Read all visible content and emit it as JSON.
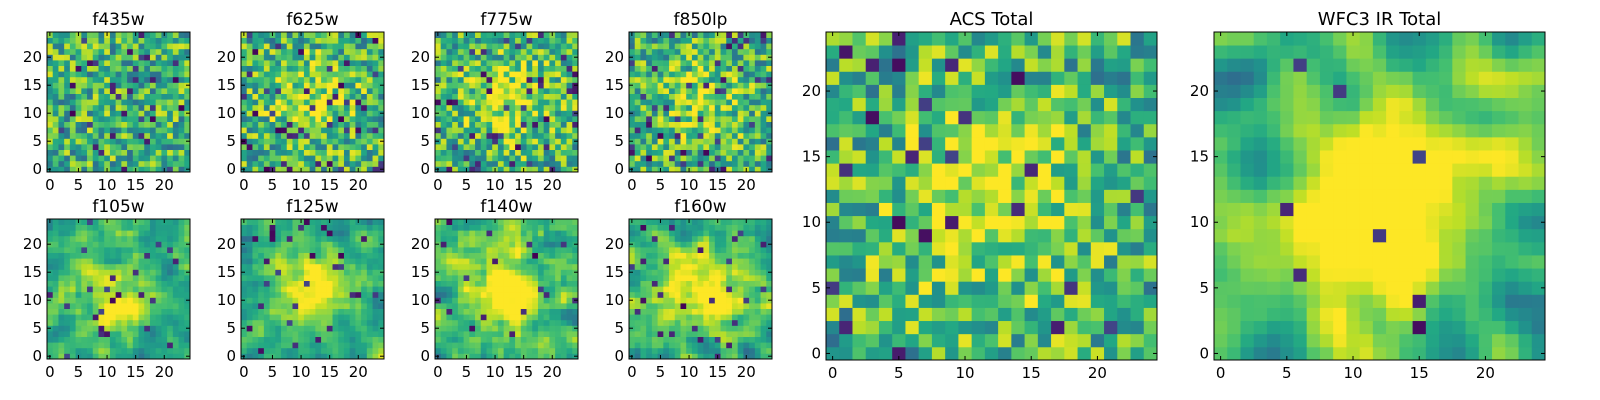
{
  "chart_data": [
    {
      "type": "heatmap",
      "title": "f435w",
      "colormap": "viridis",
      "grid": "25x25",
      "xlim": [
        0,
        24
      ],
      "ylim": [
        0,
        24
      ],
      "xticks": [
        0,
        5,
        10,
        15,
        20
      ],
      "yticks": [
        0,
        5,
        10,
        15,
        20
      ],
      "legend": "none",
      "image_pattern": {
        "seed": 11,
        "smooth": 0,
        "center_peak": 0.0,
        "dark_fraction": 0.05
      }
    },
    {
      "type": "heatmap",
      "title": "f625w",
      "colormap": "viridis",
      "grid": "25x25",
      "xlim": [
        0,
        24
      ],
      "ylim": [
        0,
        24
      ],
      "xticks": [
        0,
        5,
        10,
        15,
        20
      ],
      "yticks": [
        0,
        5,
        10,
        15,
        20
      ],
      "legend": "none",
      "image_pattern": {
        "seed": 22,
        "smooth": 0,
        "center_peak": 0.25,
        "dark_fraction": 0.07
      }
    },
    {
      "type": "heatmap",
      "title": "f775w",
      "colormap": "viridis",
      "grid": "25x25",
      "xlim": [
        0,
        24
      ],
      "ylim": [
        0,
        24
      ],
      "xticks": [
        0,
        5,
        10,
        15,
        20
      ],
      "yticks": [
        0,
        5,
        10,
        15,
        20
      ],
      "legend": "none",
      "image_pattern": {
        "seed": 33,
        "smooth": 0,
        "center_peak": 0.3,
        "dark_fraction": 0.06
      }
    },
    {
      "type": "heatmap",
      "title": "f850lp",
      "colormap": "viridis",
      "grid": "25x25",
      "xlim": [
        0,
        24
      ],
      "ylim": [
        0,
        24
      ],
      "xticks": [
        0,
        5,
        10,
        15,
        20
      ],
      "yticks": [
        0,
        5,
        10,
        15,
        20
      ],
      "legend": "none",
      "image_pattern": {
        "seed": 44,
        "smooth": 0,
        "center_peak": 0.2,
        "dark_fraction": 0.07
      }
    },
    {
      "type": "heatmap",
      "title": "f105w",
      "colormap": "viridis",
      "grid": "25x25",
      "xlim": [
        0,
        24
      ],
      "ylim": [
        0,
        24
      ],
      "xticks": [
        0,
        5,
        10,
        15,
        20
      ],
      "yticks": [
        0,
        5,
        10,
        15,
        20
      ],
      "legend": "none",
      "image_pattern": {
        "seed": 55,
        "smooth": 1,
        "center_peak": 0.3,
        "dark_fraction": 0.04
      }
    },
    {
      "type": "heatmap",
      "title": "f125w",
      "colormap": "viridis",
      "grid": "25x25",
      "xlim": [
        0,
        24
      ],
      "ylim": [
        0,
        24
      ],
      "xticks": [
        0,
        5,
        10,
        15,
        20
      ],
      "yticks": [
        0,
        5,
        10,
        15,
        20
      ],
      "legend": "none",
      "image_pattern": {
        "seed": 66,
        "smooth": 1,
        "center_peak": 0.4,
        "dark_fraction": 0.04
      }
    },
    {
      "type": "heatmap",
      "title": "f140w",
      "colormap": "viridis",
      "grid": "25x25",
      "xlim": [
        0,
        24
      ],
      "ylim": [
        0,
        24
      ],
      "xticks": [
        0,
        5,
        10,
        15,
        20
      ],
      "yticks": [
        0,
        5,
        10,
        15,
        20
      ],
      "legend": "none",
      "image_pattern": {
        "seed": 77,
        "smooth": 1,
        "center_peak": 0.4,
        "dark_fraction": 0.04
      }
    },
    {
      "type": "heatmap",
      "title": "f160w",
      "colormap": "viridis",
      "grid": "25x25",
      "xlim": [
        0,
        24
      ],
      "ylim": [
        0,
        24
      ],
      "xticks": [
        0,
        5,
        10,
        15,
        20
      ],
      "yticks": [
        0,
        5,
        10,
        15,
        20
      ],
      "legend": "none",
      "image_pattern": {
        "seed": 88,
        "smooth": 1,
        "center_peak": 0.4,
        "dark_fraction": 0.04
      }
    },
    {
      "type": "heatmap",
      "title": "ACS Total",
      "colormap": "viridis",
      "grid": "25x25",
      "xlim": [
        0,
        24
      ],
      "ylim": [
        0,
        24
      ],
      "xticks": [
        0,
        5,
        10,
        15,
        20
      ],
      "yticks": [
        0,
        5,
        10,
        15,
        20
      ],
      "legend": "none",
      "image_pattern": {
        "seed": 99,
        "smooth": 0,
        "center_peak": 0.35,
        "dark_fraction": 0.03
      }
    },
    {
      "type": "heatmap",
      "title": "WFC3 IR Total",
      "colormap": "viridis",
      "grid": "25x25",
      "xlim": [
        0,
        24
      ],
      "ylim": [
        0,
        24
      ],
      "xticks": [
        0,
        5,
        10,
        15,
        20
      ],
      "yticks": [
        0,
        5,
        10,
        15,
        20
      ],
      "legend": "none",
      "image_pattern": {
        "seed": 123,
        "smooth": 2,
        "center_peak": 0.6,
        "dark_fraction": 0.02
      }
    }
  ]
}
